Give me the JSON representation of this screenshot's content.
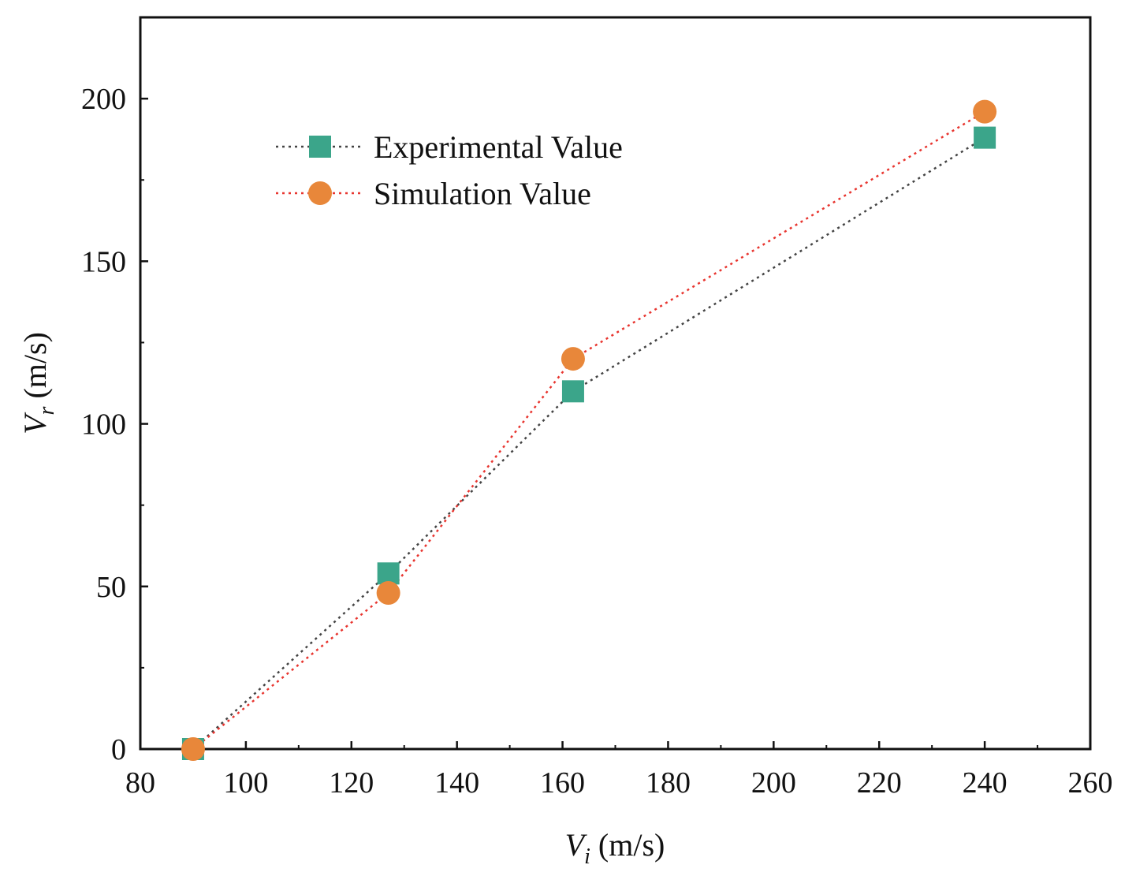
{
  "chart_data": {
    "type": "line",
    "title": "",
    "xlabel": {
      "symbol": "V",
      "subscript": "i",
      "unit": " (m/s)"
    },
    "ylabel": {
      "symbol": "V",
      "subscript": "r",
      "unit": " (m/s)"
    },
    "xlim": [
      80,
      260
    ],
    "ylim": [
      0,
      225
    ],
    "xticks": [
      80,
      100,
      120,
      140,
      160,
      180,
      200,
      220,
      240,
      260
    ],
    "yticks": [
      0,
      50,
      100,
      150,
      200
    ],
    "grid": false,
    "legend_position": "top-left",
    "series": [
      {
        "name": "Experimental Value",
        "marker": "square",
        "color": "#3ba58a",
        "line_color": "#444444",
        "line_style": "dotted",
        "x": [
          90,
          127,
          162,
          240
        ],
        "y": [
          0,
          54,
          110,
          188
        ]
      },
      {
        "name": "Simulation Value",
        "marker": "circle",
        "color": "#e8873a",
        "line_color": "#e8352f",
        "line_style": "dotted",
        "x": [
          90,
          127,
          162,
          240
        ],
        "y": [
          0,
          48,
          120,
          196
        ]
      }
    ]
  }
}
